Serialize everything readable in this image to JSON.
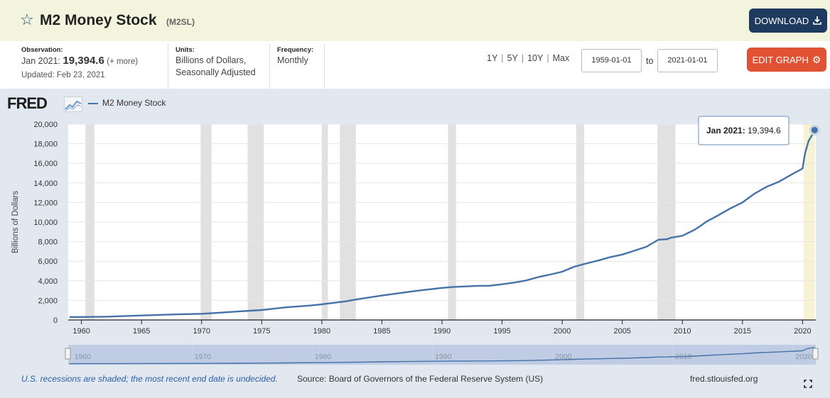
{
  "header": {
    "title": "M2 Money Stock",
    "series_id": "(M2SL)",
    "download_label": "DOWNLOAD",
    "star_icon": "star-outline-icon",
    "download_icon": "download-arrow-icon"
  },
  "meta": {
    "observation_label": "Observation:",
    "observation_date": "Jan 2021:",
    "observation_value": "19,394.6",
    "observation_more": "(+ more)",
    "updated": "Updated: Feb 23, 2021",
    "units_label": "Units:",
    "units_line1": "Billions of Dollars,",
    "units_line2": "Seasonally Adjusted",
    "frequency_label": "Frequency:",
    "frequency_value": "Monthly"
  },
  "controls": {
    "range_1y": "1Y",
    "range_5y": "5Y",
    "range_10y": "10Y",
    "range_max": "Max",
    "separator": "|",
    "start_date": "1959-01-01",
    "to_label": "to",
    "end_date": "2021-01-01",
    "edit_label": "EDIT GRAPH",
    "edit_icon": "gear-icon"
  },
  "colors": {
    "line": "#4572a7",
    "recession": "#e1e1e1",
    "download_btn": "#1f3a5f",
    "edit_btn": "#e05233",
    "header_bg": "#f3f4dd",
    "panel_bg": "#e2e8f0"
  },
  "chart_data": {
    "type": "line",
    "logo": "FRED",
    "series": [
      {
        "name": "M2 Money Stock",
        "x": [
          1959.0,
          1960.0,
          1962.0,
          1965.0,
          1968.0,
          1970.0,
          1971.0,
          1973.0,
          1975.0,
          1977.0,
          1979.0,
          1980.0,
          1981.0,
          1982.0,
          1983.0,
          1985.0,
          1987.0,
          1988.0,
          1990.0,
          1991.0,
          1992.0,
          1993.0,
          1994.0,
          1995.0,
          1996.0,
          1997.0,
          1998.0,
          1999.0,
          2000.0,
          2001.0,
          2002.0,
          2003.0,
          2004.0,
          2005.0,
          2006.0,
          2007.0,
          2008.0,
          2008.75,
          2009.0,
          2010.0,
          2011.0,
          2011.5,
          2012.0,
          2013.0,
          2014.0,
          2015.0,
          2016.0,
          2017.0,
          2018.0,
          2019.0,
          2019.9,
          2020.0,
          2020.2,
          2020.5,
          2020.8,
          2021.0
        ],
        "y": [
          287,
          304,
          335,
          460,
          570,
          627,
          706,
          862,
          1016,
          1290,
          1474,
          1600,
          1756,
          1905,
          2124,
          2495,
          2832,
          2990,
          3277,
          3378,
          3431,
          3482,
          3498,
          3642,
          3820,
          4035,
          4375,
          4638,
          4925,
          5434,
          5769,
          6070,
          6420,
          6680,
          7070,
          7470,
          8190,
          8250,
          8390,
          8600,
          9200,
          9600,
          10040,
          10700,
          11400,
          12000,
          12900,
          13600,
          14100,
          14800,
          15400,
          15480,
          17000,
          18300,
          18900,
          19394.6
        ]
      }
    ],
    "recessions": [
      [
        1960.33,
        1961.08
      ],
      [
        1969.92,
        1970.83
      ],
      [
        1973.83,
        1975.17
      ],
      [
        1980.0,
        1980.5
      ],
      [
        1981.5,
        1982.83
      ],
      [
        1990.5,
        1991.17
      ],
      [
        2001.17,
        2001.83
      ],
      [
        2007.92,
        2009.42
      ],
      [
        2020.08,
        2021.0
      ]
    ],
    "xlim": [
      1958.9,
      2021.1
    ],
    "ylim": [
      0,
      20000
    ],
    "yticks": [
      0,
      2000,
      4000,
      6000,
      8000,
      10000,
      12000,
      14000,
      16000,
      18000,
      20000
    ],
    "ytick_labels": [
      "0",
      "2,000",
      "4,000",
      "6,000",
      "8,000",
      "10,000",
      "12,000",
      "14,000",
      "16,000",
      "18,000",
      "20,000"
    ],
    "xticks": [
      1960,
      1965,
      1970,
      1975,
      1980,
      1985,
      1990,
      1995,
      2000,
      2005,
      2010,
      2015,
      2020
    ],
    "xtick_labels": [
      "1960",
      "1965",
      "1970",
      "1975",
      "1980",
      "1985",
      "1990",
      "1995",
      "2000",
      "2005",
      "2010",
      "2015",
      "2020"
    ],
    "navigator_ticks": [
      1960,
      1970,
      1980,
      1990,
      2000,
      2010,
      2020
    ],
    "navigator_tick_labels": [
      "1960",
      "1970",
      "1980",
      "1990",
      "2000",
      "2010",
      "2020"
    ],
    "ylabel": "Billions of Dollars",
    "xlabel": "",
    "grid": "horizontal",
    "legend_position": "top-left",
    "tooltip": {
      "date": "Jan 2021:",
      "value": "19,394.6"
    }
  },
  "footer": {
    "recession_note": "U.S. recessions are shaded; the most recent end date is undecided.",
    "source": "Source: Board of Governors of the Federal Reserve System (US)",
    "site": "fred.stlouisfed.org",
    "fullscreen_icon": "fullscreen-icon"
  }
}
